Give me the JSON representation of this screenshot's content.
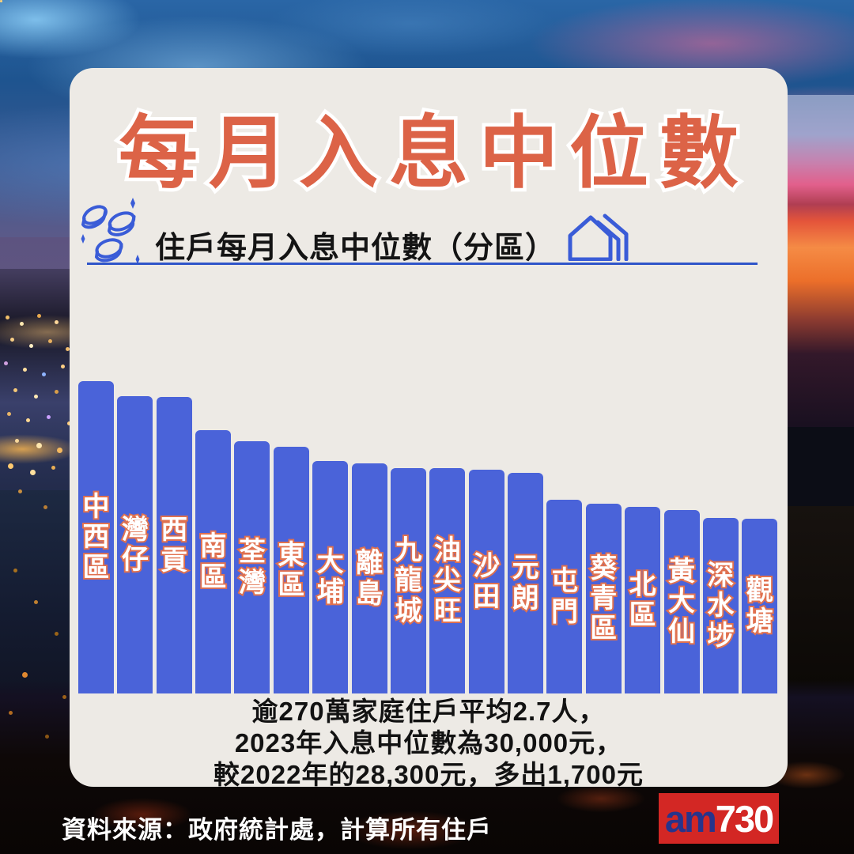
{
  "header": {
    "title": "每月入息中位數"
  },
  "subtitle": {
    "text": "住戶每月入息中位數（分區）",
    "left_icon": "coins-icon",
    "right_icon": "house-icon",
    "underline_color": "#2f55c9"
  },
  "chart_data": {
    "type": "bar",
    "title": "住戶每月入息中位數（分區）",
    "categories": [
      "中西區",
      "灣仔",
      "西貢",
      "南區",
      "荃灣",
      "東區",
      "大埔",
      "離島",
      "九龍城",
      "油尖旺",
      "沙田",
      "元朗",
      "屯門",
      "葵青區",
      "北區",
      "黃大仙",
      "深水埗",
      "觀塘"
    ],
    "values": [
      395,
      376,
      375,
      333,
      319,
      312,
      294,
      291,
      285,
      285,
      283,
      279,
      245,
      240,
      236,
      232,
      222,
      221
    ],
    "value_unit": "relative-bar-height-px (no numeric axis labels shown in image)",
    "ylim": [
      0,
      395
    ],
    "grid": false,
    "legend": false,
    "value_labels_shown": false,
    "bar_color": "#4a63d9",
    "label_text_color": "#ffffff",
    "label_outline_color": "#e0714f"
  },
  "summary": {
    "lines": [
      "逾270萬家庭住戶平均2.7人，",
      "2023年入息中位數為30,000元，",
      "較2022年的28,300元，多出1,700元"
    ]
  },
  "footer": {
    "source": "資料來源：政府統計處，計算所有住戶",
    "logo_prefix": "am",
    "logo_suffix": "730"
  },
  "colors": {
    "title": "#dc6347",
    "title_outline": "#ffffff",
    "card_bg": "#edeae5",
    "accent_blue": "#3a5cd7",
    "logo_bg": "#d32724",
    "logo_prefix_color": "#27348b",
    "logo_suffix_color": "#ffffff",
    "summary_text": "#121212",
    "source_text": "#ffffff"
  }
}
